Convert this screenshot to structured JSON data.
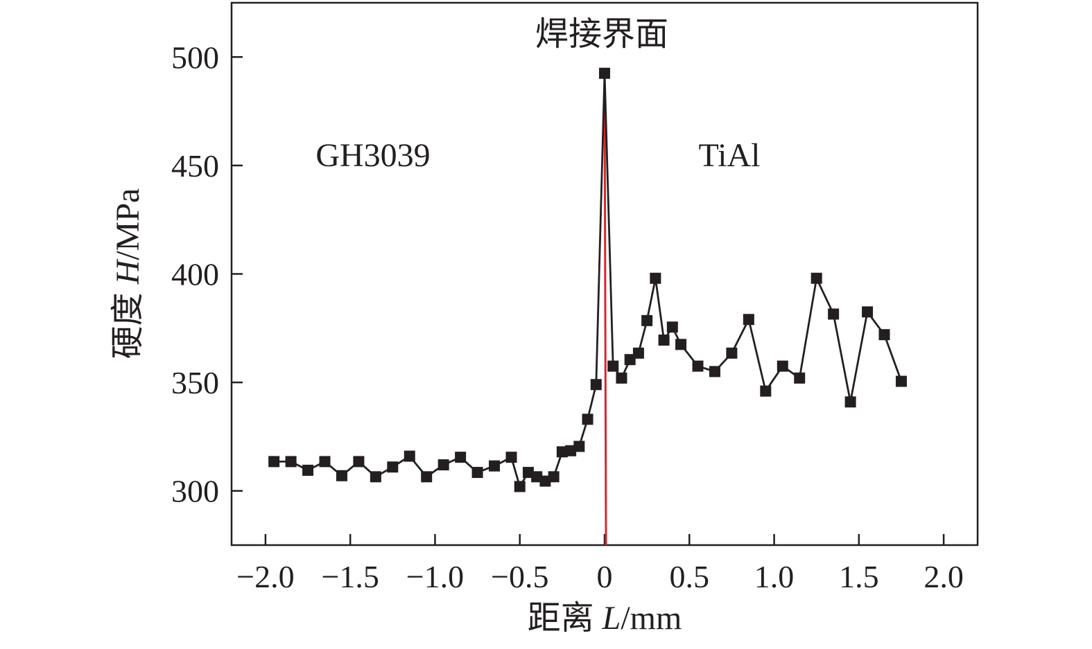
{
  "chart_data": {
    "type": "line",
    "title": "",
    "xlabel": {
      "prefix": "距离 ",
      "var": "L",
      "unit": "/mm"
    },
    "ylabel": {
      "prefix": "硬度 ",
      "var": "H",
      "unit": "/MPa"
    },
    "xlim": [
      -2.2,
      2.2
    ],
    "ylim": [
      275,
      525
    ],
    "xticks": [
      -2.0,
      -1.5,
      -1.0,
      -0.5,
      0,
      0.5,
      1.0,
      1.5,
      2.0
    ],
    "xtick_labels": [
      "−2.0",
      "−1.5",
      "−1.0",
      "−0.5",
      "0",
      "0.5",
      "1.0",
      "1.5",
      "2.0"
    ],
    "yticks": [
      300,
      350,
      400,
      450,
      500
    ],
    "ytick_labels": [
      "300",
      "350",
      "400",
      "450",
      "500"
    ],
    "grid": false,
    "annotations": {
      "interface_label": "焊接界面",
      "left_material": "GH3039",
      "right_material": "TiAl"
    },
    "interface_line": {
      "x": 0,
      "color": "#d7262c"
    },
    "series": [
      {
        "color": "#231f20",
        "marker": "square",
        "x": [
          -1.95,
          -1.85,
          -1.75,
          -1.65,
          -1.55,
          -1.45,
          -1.35,
          -1.25,
          -1.15,
          -1.05,
          -0.95,
          -0.85,
          -0.75,
          -0.65,
          -0.55,
          -0.5,
          -0.45,
          -0.4,
          -0.35,
          -0.3,
          -0.25,
          -0.2,
          -0.15,
          -0.1,
          -0.05,
          0,
          0.05,
          0.1,
          0.15,
          0.2,
          0.25,
          0.3,
          0.35,
          0.4,
          0.45,
          0.55,
          0.65,
          0.75,
          0.85,
          0.95,
          1.05,
          1.15,
          1.25,
          1.35,
          1.45,
          1.55,
          1.65,
          1.75
        ],
        "values": [
          313.5,
          313.5,
          309.5,
          313.5,
          307,
          313.5,
          306.5,
          311,
          316,
          306.5,
          312,
          315.5,
          308.5,
          311.5,
          315.5,
          302,
          308.5,
          306.5,
          304.5,
          306.5,
          318,
          318.5,
          320.5,
          333,
          349,
          492.5,
          357.5,
          352,
          360.5,
          363.5,
          378.5,
          398,
          369.5,
          375.5,
          367.5,
          357.5,
          355,
          363.5,
          379,
          346,
          357.5,
          352,
          398,
          381.5,
          341,
          382.5,
          372,
          350.5
        ]
      }
    ]
  }
}
